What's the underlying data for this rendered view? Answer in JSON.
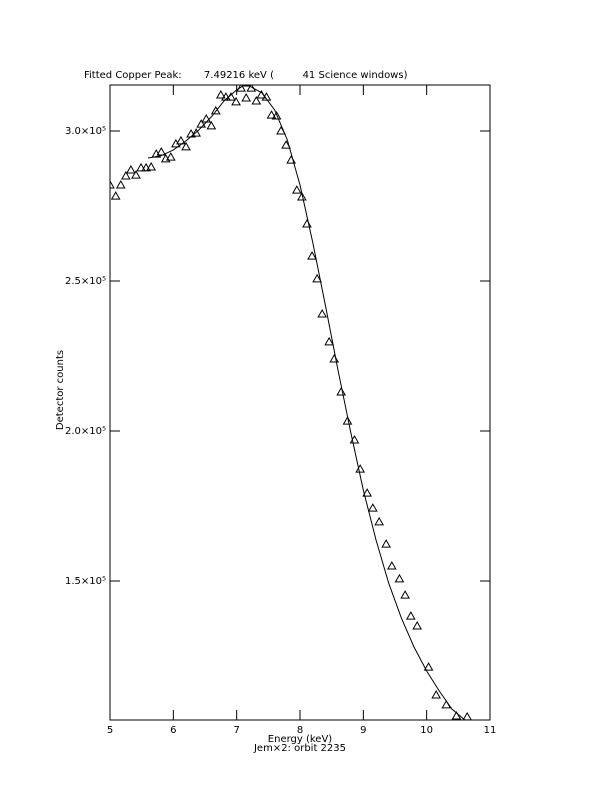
{
  "chart_data": {
    "type": "scatter",
    "title": "Fitted Copper Peak:       7.49216 keV (         41 Science windows)",
    "xlabel": "Energy (keV)",
    "subtitle": "Jem×2: orbit 2235",
    "ylabel": "Detector counts",
    "xlim": [
      5,
      11
    ],
    "xticks": [
      5,
      6,
      7,
      8,
      9,
      10,
      11
    ],
    "ylim": [
      103670,
      315330
    ],
    "yticks": [
      {
        "value": 150000,
        "label": "1.5×10⁵"
      },
      {
        "value": 200000,
        "label": "2.0×10⁵"
      },
      {
        "value": 250000,
        "label": "2.5×10⁵"
      },
      {
        "value": 300000,
        "label": "3.0×10⁵"
      }
    ],
    "series": [
      {
        "type": "scatter",
        "marker": "triangle",
        "color": "#000000",
        "x": [
          5.0,
          5.09,
          5.17,
          5.25,
          5.33,
          5.41,
          5.49,
          5.57,
          5.65,
          5.73,
          5.81,
          5.88,
          5.96,
          6.04,
          6.12,
          6.2,
          6.28,
          6.36,
          6.44,
          6.52,
          6.6,
          6.67,
          6.75,
          6.83,
          6.91,
          6.99,
          7.07,
          7.15,
          7.23,
          7.31,
          7.39,
          7.47,
          7.55,
          7.63,
          7.7,
          7.78,
          7.86,
          7.95,
          8.03,
          8.11,
          8.19,
          8.27,
          8.35,
          8.46,
          8.54,
          8.65,
          8.75,
          8.86,
          8.95,
          9.06,
          9.15,
          9.25,
          9.36,
          9.45,
          9.57,
          9.66,
          9.75,
          9.85,
          10.03,
          10.15,
          10.31,
          10.47,
          10.64
        ],
        "values": [
          282000,
          278300,
          282000,
          285000,
          287000,
          285300,
          287700,
          287700,
          288000,
          292300,
          293000,
          290700,
          291300,
          295700,
          296700,
          294700,
          299000,
          299300,
          302300,
          304000,
          301700,
          306700,
          312000,
          311300,
          311300,
          309700,
          314300,
          311000,
          314300,
          310000,
          312000,
          311300,
          305300,
          305000,
          300000,
          295300,
          290300,
          280300,
          278000,
          269000,
          258300,
          250700,
          239000,
          229700,
          224000,
          213000,
          203300,
          197000,
          187300,
          179300,
          174300,
          169700,
          162300,
          155000,
          150700,
          145300,
          138300,
          135000,
          121300,
          112000,
          108700,
          105000,
          104700
        ]
      },
      {
        "type": "line",
        "color": "#000000",
        "x": [
          5.6,
          5.8,
          6.0,
          6.2,
          6.4,
          6.6,
          6.8,
          7.0,
          7.1,
          7.2,
          7.4,
          7.6,
          7.8,
          8.0,
          8.2,
          8.4,
          8.6,
          8.8,
          9.0,
          9.2,
          9.4,
          9.6,
          9.8,
          10.0,
          10.2,
          10.4,
          10.6
        ],
        "values": [
          291000,
          291700,
          293700,
          296700,
          300300,
          304700,
          310000,
          313700,
          315000,
          315000,
          312700,
          307000,
          297000,
          282000,
          263000,
          242000,
          220300,
          199700,
          180300,
          163700,
          149300,
          137700,
          128000,
          120000,
          113300,
          107300,
          103700
        ]
      }
    ]
  }
}
